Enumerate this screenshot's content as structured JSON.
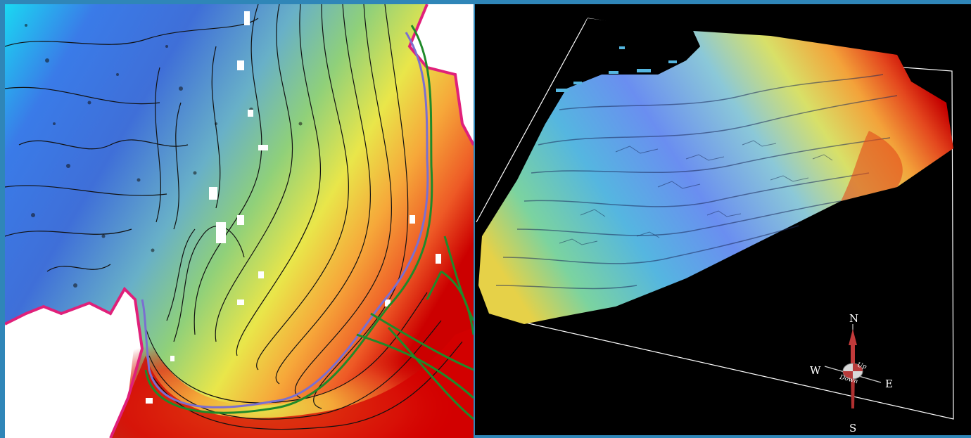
{
  "colors": {
    "frame": "#2f86b8",
    "deep": "#2b62e0",
    "mid": "#6fc27a",
    "shallow": "#f3c23a",
    "high": "#cc0000",
    "contour": "#111111",
    "coastline_green": "#1f8a2a",
    "coastline_purple": "#7b6fd0"
  },
  "left_map": {
    "type": "bathymetric-contour-map"
  },
  "right_map": {
    "type": "3d-shaded-relief-surface",
    "compass": {
      "north": "N",
      "south": "S",
      "east": "E",
      "west": "W",
      "up_label": "Up",
      "down_label": "Down"
    }
  }
}
